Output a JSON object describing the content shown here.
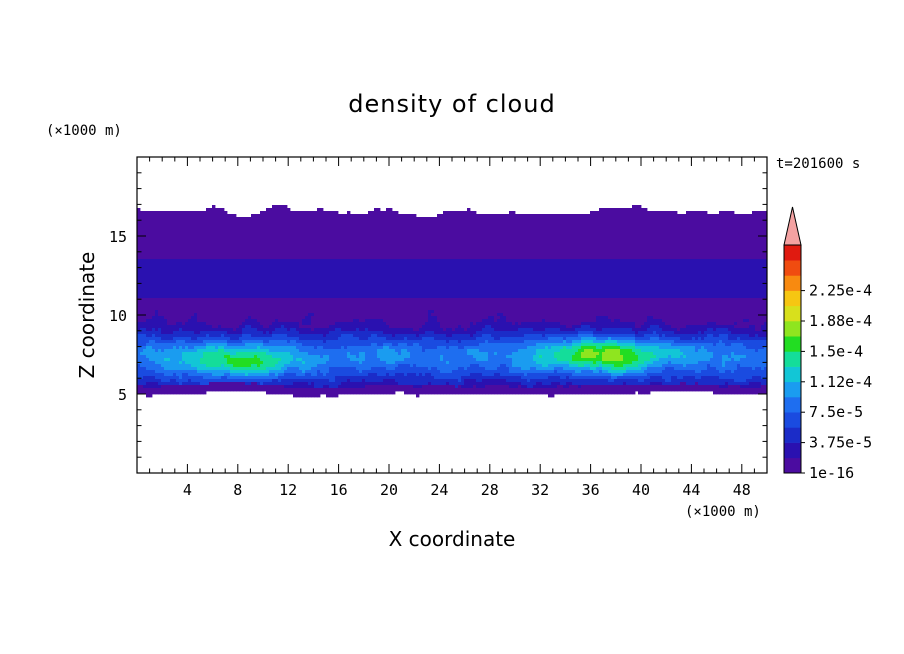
{
  "chart_data": {
    "type": "heatmap",
    "title": "density of cloud",
    "xlabel": "X coordinate",
    "ylabel": "Z coordinate",
    "x_unit": "(×1000 m)",
    "y_unit": "(×1000 m)",
    "time_label": "t=201600 s",
    "xlim": [
      0,
      50
    ],
    "ylim": [
      0,
      20
    ],
    "xticks": [
      4,
      8,
      12,
      16,
      20,
      24,
      28,
      32,
      36,
      40,
      44,
      48
    ],
    "yticks": [
      5,
      10,
      15
    ],
    "grid": false,
    "colorbar": {
      "placement": "right",
      "levels": [
        1e-16,
        1.875e-05,
        3.75e-05,
        5.625e-05,
        7.5e-05,
        9.375e-05,
        0.0001125,
        0.00013125,
        0.00015,
        0.00016875,
        0.0001875,
        0.00020625,
        0.000225,
        0.00024375
      ],
      "colors": [
        "#4b0ca0",
        "#2a11b0",
        "#1b2cc8",
        "#1a4be0",
        "#1e6ef0",
        "#1a9cf0",
        "#12c6d6",
        "#14dd9a",
        "#22dd22",
        "#8fe51f",
        "#d8e01c",
        "#f6c612",
        "#f88a10",
        "#f04c10",
        "#e01a10"
      ],
      "overflow_color": "#f4a2a2",
      "tick_labels": [
        "1e-16",
        "3.75e-5",
        "7.5e-5",
        "1.12e-4",
        "1.5e-4",
        "1.88e-4",
        "2.25e-4"
      ]
    },
    "cloud_layer": {
      "base_km": [
        4.7,
        5.4
      ],
      "top_km": [
        15.9,
        17.2
      ],
      "dense_band_km": [
        5.5,
        9.5
      ],
      "peak_regions": [
        {
          "x_km": 8,
          "z_km": 7,
          "level_index": 8
        },
        {
          "x_km": 37,
          "z_km": 7.5,
          "level_index": 9
        }
      ]
    }
  }
}
